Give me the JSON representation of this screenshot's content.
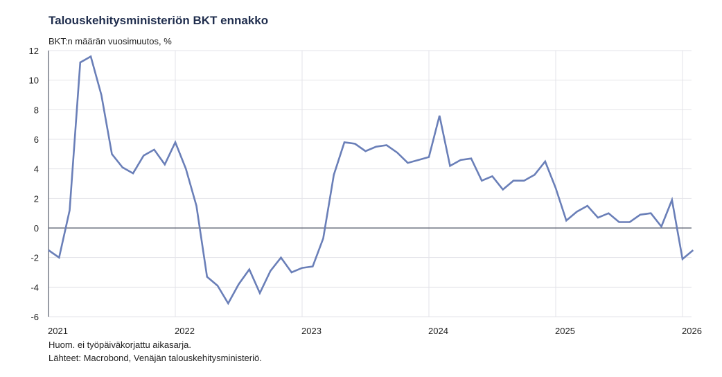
{
  "title": "Talouskehitysministeriön BKT ennakko",
  "notes": [
    "Huom. ei työpäiväkorjattu aikasarja.",
    "Lähteet: Macrobond, Venäjän talouskehitysministeriö."
  ],
  "chart_data": {
    "type": "line",
    "title": "Talouskehitysministeriön BKT ennakko",
    "ylabel": "BKT:n määrän vuosimuutos, %",
    "xlabel": "",
    "ylim": [
      -6,
      12
    ],
    "yticks": [
      -6,
      -4,
      -2,
      0,
      2,
      4,
      6,
      8,
      10,
      12
    ],
    "xticks": [
      "2021",
      "2022",
      "2023",
      "2024",
      "2025",
      "2026"
    ],
    "xrange": [
      "2021-01",
      "2026-02"
    ],
    "grid": true,
    "frequency": "monthly",
    "series_color": "#6a7fb8",
    "x_start": "2021-01",
    "values": [
      -1.5,
      -2.0,
      1.2,
      11.2,
      11.6,
      9.0,
      5.0,
      4.1,
      3.7,
      4.9,
      5.3,
      4.3,
      5.8,
      4.0,
      1.5,
      -3.3,
      -3.9,
      -5.1,
      -3.8,
      -2.8,
      -4.4,
      -2.9,
      -2.0,
      -3.0,
      -2.7,
      -2.6,
      -0.7,
      3.6,
      5.8,
      5.7,
      5.2,
      5.5,
      5.6,
      5.1,
      4.4,
      4.6,
      4.8,
      7.6,
      4.2,
      4.6,
      4.7,
      3.2,
      3.5,
      2.6,
      3.2,
      3.2,
      3.6,
      4.5,
      2.7,
      0.5,
      1.1,
      1.5,
      0.7,
      1.0,
      0.4,
      0.4,
      0.9,
      1.0,
      0.1,
      1.9,
      -2.1,
      -1.5
    ]
  }
}
